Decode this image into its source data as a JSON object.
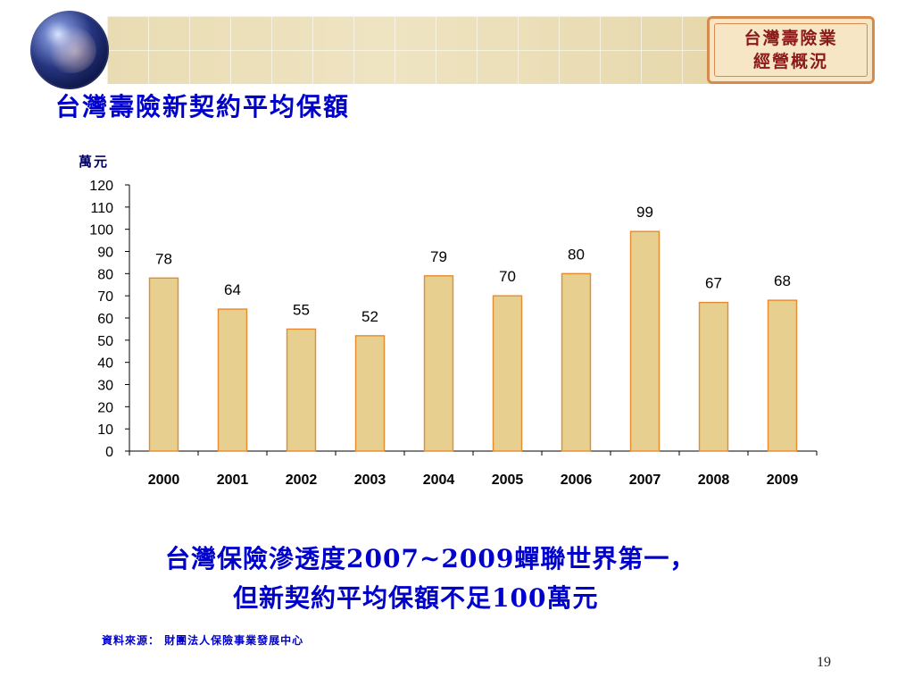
{
  "header": {
    "badge_line1": "台灣壽險業",
    "badge_line2": "經營概況"
  },
  "slide": {
    "title": "台灣壽險新契約平均保額",
    "note_line1": "台灣保險滲透度2007~2009蟬聯世界第一，",
    "note_line2": "但新契約平均保額不足100萬元",
    "source": "資料來源： 財團法人保險事業發展中心",
    "page_number": "19"
  },
  "chart_data": {
    "type": "bar",
    "title": "",
    "xlabel": "",
    "ylabel": "萬元",
    "categories": [
      "2000",
      "2001",
      "2002",
      "2003",
      "2004",
      "2005",
      "2006",
      "2007",
      "2008",
      "2009"
    ],
    "values": [
      78,
      64,
      55,
      52,
      79,
      70,
      80,
      99,
      67,
      68
    ],
    "ylim": [
      0,
      120
    ],
    "yticks": [
      0,
      10,
      20,
      30,
      40,
      50,
      60,
      70,
      80,
      90,
      100,
      110,
      120
    ],
    "grid": false,
    "legend": "none",
    "bar_color": "#e6cf8f",
    "bar_edge_color": "#e88a2e",
    "text_color": "#000000"
  },
  "colors": {
    "title_color": "#0000cc",
    "badge_text": "#8b1a1a",
    "badge_border": "#d68a4e",
    "badge_fill": "#f6e6c6"
  }
}
